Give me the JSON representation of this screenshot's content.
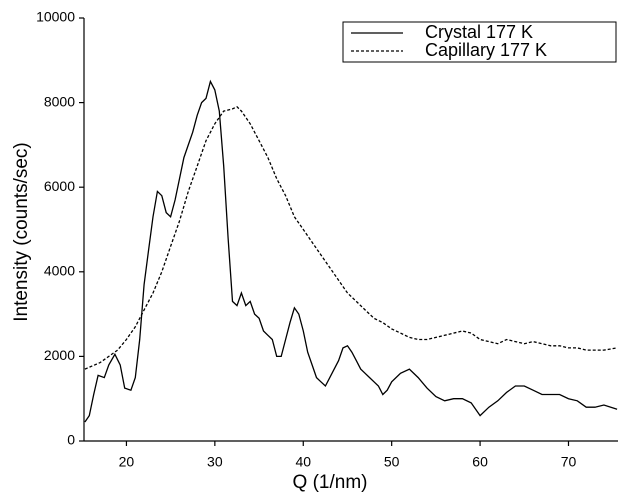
{
  "chart_data": {
    "type": "line",
    "xlabel": "Q  (1/nm)",
    "ylabel": "Intensity  (counts/sec)",
    "xlim": [
      15.2,
      75.6
    ],
    "xticks": [
      20,
      30,
      40,
      50,
      60,
      70
    ],
    "ylim": [
      0,
      10000
    ],
    "yticks": [
      0,
      2000,
      4000,
      6000,
      8000,
      10000
    ],
    "legend": "upper right",
    "series": [
      {
        "name": "Crystal 177 K",
        "color": "#000000",
        "linestyle": "solid",
        "x": [
          15.3,
          15.8,
          16.3,
          16.8,
          17.5,
          18,
          18.7,
          19.3,
          19.8,
          20.5,
          21,
          21.5,
          22,
          22.5,
          23,
          23.5,
          24,
          24.5,
          25,
          25.5,
          26,
          26.5,
          27,
          27.5,
          28,
          28.5,
          29,
          29.5,
          30,
          30.5,
          31,
          31.5,
          32,
          32.5,
          33,
          33.5,
          34,
          34.5,
          35,
          35.5,
          36,
          36.5,
          37,
          37.5,
          38,
          38.5,
          39,
          39.5,
          40,
          40.5,
          41,
          41.5,
          42,
          42.5,
          43,
          43.5,
          44,
          44.5,
          45,
          45.5,
          46,
          46.5,
          47,
          47.5,
          48,
          48.5,
          49,
          49.5,
          50,
          51,
          52,
          53,
          54,
          55,
          56,
          57,
          58,
          59,
          60,
          61,
          62,
          63,
          64,
          65,
          66,
          67,
          68,
          69,
          70,
          71,
          72,
          73,
          74,
          75.5
        ],
        "values": [
          450,
          600,
          1100,
          1550,
          1500,
          1800,
          2050,
          1800,
          1250,
          1200,
          1500,
          2400,
          3700,
          4500,
          5300,
          5900,
          5800,
          5400,
          5300,
          5700,
          6200,
          6700,
          7000,
          7300,
          7700,
          8000,
          8100,
          8500,
          8300,
          7800,
          6500,
          4800,
          3300,
          3200,
          3500,
          3200,
          3300,
          3000,
          2900,
          2600,
          2500,
          2400,
          2000,
          2000,
          2400,
          2800,
          3150,
          3000,
          2600,
          2100,
          1800,
          1500,
          1400,
          1300,
          1500,
          1700,
          1900,
          2200,
          2250,
          2100,
          1900,
          1700,
          1600,
          1500,
          1400,
          1300,
          1100,
          1200,
          1400,
          1600,
          1700,
          1500,
          1250,
          1050,
          950,
          1000,
          1000,
          900,
          600,
          800,
          950,
          1150,
          1300,
          1300,
          1200,
          1100,
          1100,
          1100,
          1000,
          950,
          800,
          800,
          850,
          750
        ]
      },
      {
        "name": "Capillary 177 K",
        "color": "#000000",
        "linestyle": "dashed",
        "x": [
          15.3,
          17,
          18,
          19,
          20,
          21,
          22,
          23,
          24,
          25,
          26,
          27,
          28,
          29,
          30,
          31,
          32,
          32.5,
          33,
          34,
          35,
          36,
          37,
          38,
          39,
          40,
          41,
          42,
          43,
          44,
          45,
          46,
          47,
          48,
          49,
          50,
          51,
          52,
          53,
          54,
          55,
          56,
          57,
          58,
          59,
          60,
          61,
          62,
          63,
          64,
          65,
          66,
          67,
          68,
          69,
          70,
          71,
          72,
          73,
          74,
          75.5
        ],
        "values": [
          1700,
          1850,
          2000,
          2150,
          2400,
          2700,
          3100,
          3500,
          4000,
          4600,
          5200,
          5900,
          6500,
          7100,
          7500,
          7800,
          7850,
          7900,
          7800,
          7500,
          7100,
          6700,
          6200,
          5800,
          5300,
          5000,
          4700,
          4400,
          4100,
          3800,
          3500,
          3300,
          3100,
          2900,
          2800,
          2650,
          2550,
          2450,
          2400,
          2400,
          2450,
          2500,
          2550,
          2600,
          2550,
          2400,
          2350,
          2300,
          2400,
          2350,
          2300,
          2350,
          2300,
          2250,
          2250,
          2200,
          2200,
          2150,
          2150,
          2150,
          2200
        ]
      }
    ]
  }
}
